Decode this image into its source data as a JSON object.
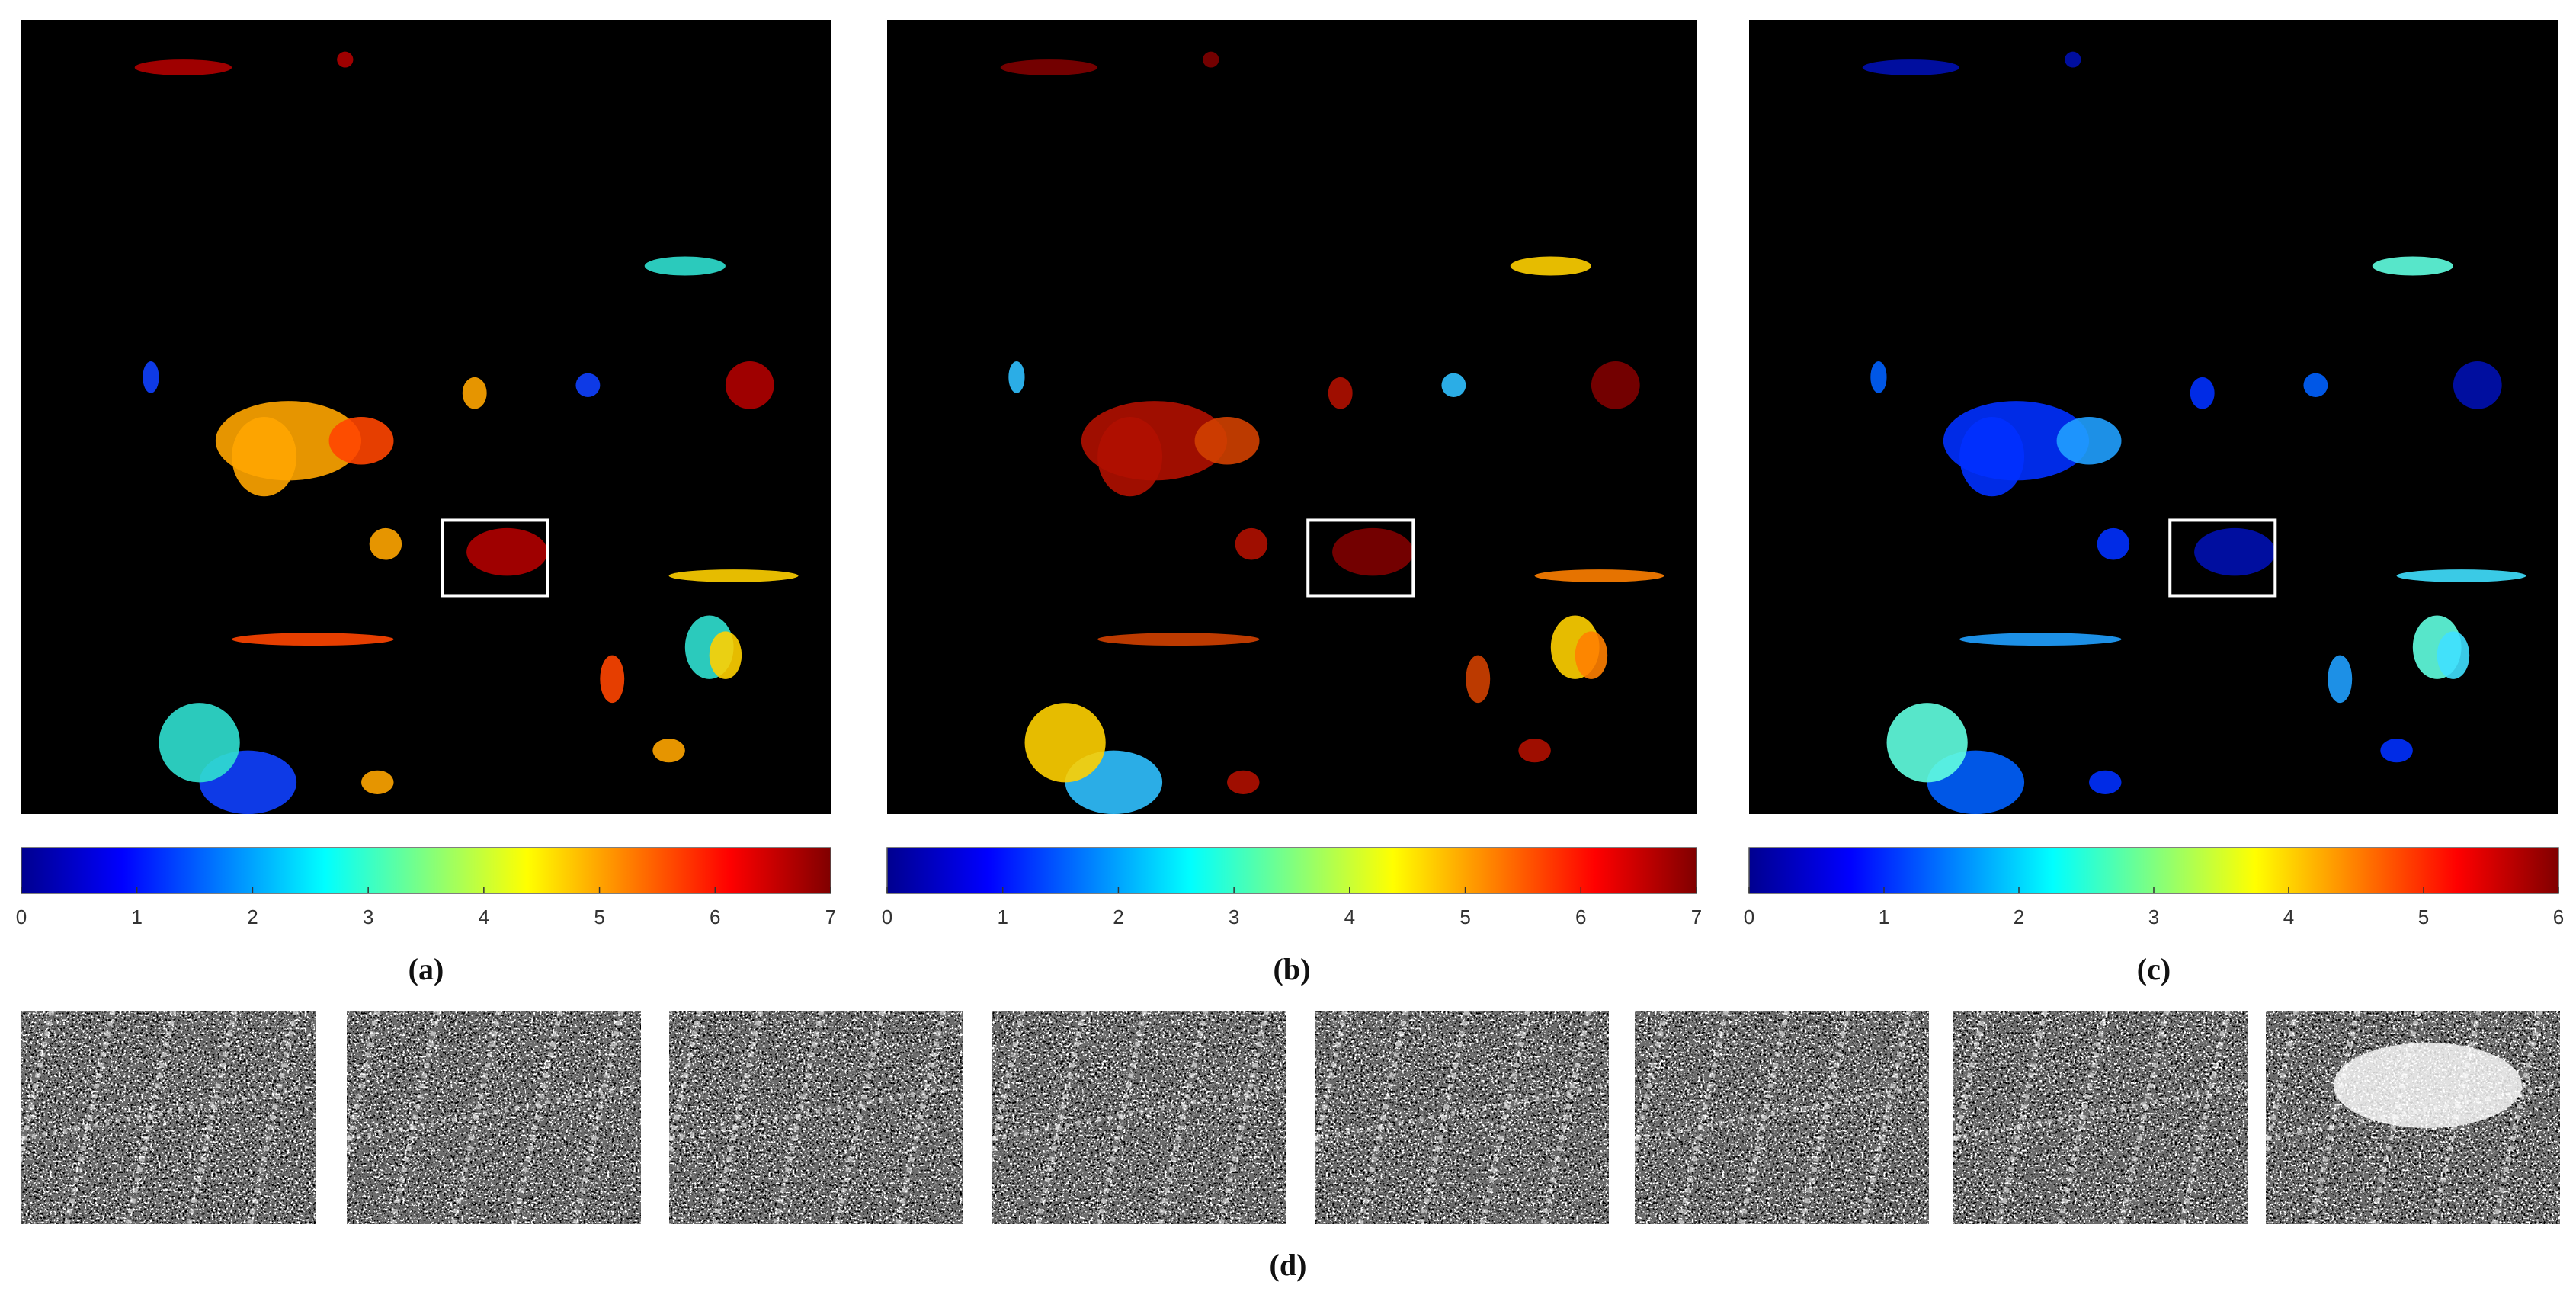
{
  "panels": [
    {
      "label": "(a)",
      "colorbar": {
        "range": [
          0,
          7
        ],
        "ticks": [
          0,
          1,
          2,
          3,
          4,
          5,
          6,
          7
        ]
      }
    },
    {
      "label": "(b)",
      "colorbar": {
        "range": [
          0,
          7
        ],
        "ticks": [
          0,
          1,
          2,
          3,
          4,
          5,
          6,
          7
        ]
      }
    },
    {
      "label": "(c)",
      "colorbar": {
        "range": [
          0,
          6
        ],
        "ticks": [
          0,
          1,
          2,
          3,
          4,
          5,
          6
        ]
      }
    }
  ],
  "thumbnails": {
    "label": "(d)"
  }
}
